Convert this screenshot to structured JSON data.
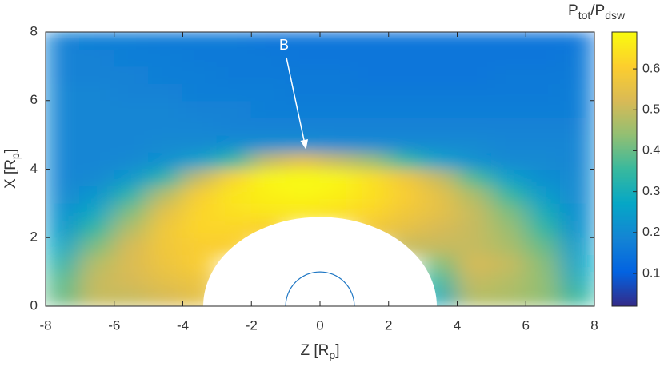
{
  "chart_data": {
    "type": "heatmap",
    "xlabel": [
      "Z [R",
      "p",
      "]"
    ],
    "ylabel": [
      "X [R",
      "p",
      "]"
    ],
    "colorbar_label": [
      "P",
      "tot",
      "/P",
      "dsw"
    ],
    "annotation": "B",
    "colormap": "parula",
    "clim": [
      0.02,
      0.69
    ],
    "cticks": [
      0.1,
      0.2,
      0.3,
      0.4,
      0.5,
      0.6
    ],
    "xlim": [
      -8,
      8
    ],
    "ylim": [
      0,
      8
    ],
    "xticks": [
      -8,
      -6,
      -4,
      -2,
      0,
      2,
      4,
      6,
      8
    ],
    "yticks": [
      0,
      2,
      4,
      6,
      8
    ],
    "x": [
      -7.5,
      -6.5,
      -5.5,
      -4.5,
      -3.5,
      -2.5,
      -1.5,
      -0.5,
      0.5,
      1.5,
      2.5,
      3.5,
      4.5,
      5.5,
      6.5,
      7.5
    ],
    "y": [
      0.25,
      0.75,
      1.25,
      1.75,
      2.25,
      2.75,
      3.25,
      3.75,
      4.25,
      4.75,
      5.25,
      5.75,
      6.25,
      6.75,
      7.25,
      7.75
    ],
    "values": [
      [
        0.4,
        0.5,
        0.5,
        0.52,
        0.55,
        null,
        null,
        null,
        null,
        null,
        null,
        0.3,
        0.48,
        0.47,
        0.44,
        0.35
      ],
      [
        0.38,
        0.5,
        0.52,
        0.55,
        0.57,
        null,
        null,
        null,
        null,
        null,
        null,
        0.35,
        0.5,
        0.48,
        0.44,
        0.3
      ],
      [
        0.33,
        0.48,
        0.53,
        0.57,
        0.6,
        null,
        null,
        null,
        null,
        null,
        null,
        0.42,
        0.52,
        0.5,
        0.43,
        0.27
      ],
      [
        0.28,
        0.42,
        0.52,
        0.58,
        0.6,
        0.6,
        null,
        null,
        null,
        null,
        0.5,
        0.5,
        0.5,
        0.47,
        0.4,
        0.25
      ],
      [
        0.24,
        0.35,
        0.48,
        0.58,
        0.62,
        0.62,
        0.6,
        null,
        null,
        0.58,
        0.55,
        0.52,
        0.5,
        0.45,
        0.35,
        0.22
      ],
      [
        0.22,
        0.28,
        0.42,
        0.55,
        0.62,
        0.64,
        0.65,
        0.65,
        0.64,
        0.62,
        0.58,
        0.55,
        0.5,
        0.42,
        0.3,
        0.21
      ],
      [
        0.2,
        0.23,
        0.33,
        0.48,
        0.6,
        0.65,
        0.67,
        0.68,
        0.67,
        0.64,
        0.6,
        0.55,
        0.47,
        0.35,
        0.25,
        0.2
      ],
      [
        0.19,
        0.2,
        0.24,
        0.33,
        0.5,
        0.62,
        0.68,
        0.69,
        0.68,
        0.64,
        0.58,
        0.5,
        0.37,
        0.26,
        0.21,
        0.2
      ],
      [
        0.19,
        0.19,
        0.2,
        0.22,
        0.26,
        0.35,
        0.5,
        0.55,
        0.5,
        0.45,
        0.35,
        0.26,
        0.22,
        0.2,
        0.2,
        0.19
      ],
      [
        0.19,
        0.19,
        0.19,
        0.2,
        0.2,
        0.21,
        0.21,
        0.21,
        0.2,
        0.2,
        0.2,
        0.2,
        0.2,
        0.19,
        0.19,
        0.19
      ],
      [
        0.19,
        0.19,
        0.19,
        0.19,
        0.19,
        0.18,
        0.18,
        0.18,
        0.18,
        0.18,
        0.18,
        0.18,
        0.18,
        0.18,
        0.18,
        0.18
      ],
      [
        0.19,
        0.19,
        0.19,
        0.19,
        0.18,
        0.18,
        0.17,
        0.17,
        0.17,
        0.17,
        0.17,
        0.17,
        0.17,
        0.17,
        0.17,
        0.17
      ],
      [
        0.19,
        0.19,
        0.18,
        0.18,
        0.17,
        0.17,
        0.17,
        0.16,
        0.16,
        0.16,
        0.16,
        0.16,
        0.16,
        0.16,
        0.16,
        0.17
      ],
      [
        0.18,
        0.18,
        0.18,
        0.17,
        0.17,
        0.16,
        0.16,
        0.16,
        0.16,
        0.15,
        0.15,
        0.15,
        0.15,
        0.16,
        0.16,
        0.16
      ],
      [
        0.18,
        0.18,
        0.17,
        0.17,
        0.16,
        0.16,
        0.16,
        0.15,
        0.15,
        0.15,
        0.15,
        0.15,
        0.15,
        0.15,
        0.15,
        0.16
      ],
      [
        0.18,
        0.17,
        0.17,
        0.16,
        0.16,
        0.16,
        0.15,
        0.15,
        0.15,
        0.15,
        0.15,
        0.15,
        0.15,
        0.15,
        0.15,
        0.15
      ]
    ]
  }
}
